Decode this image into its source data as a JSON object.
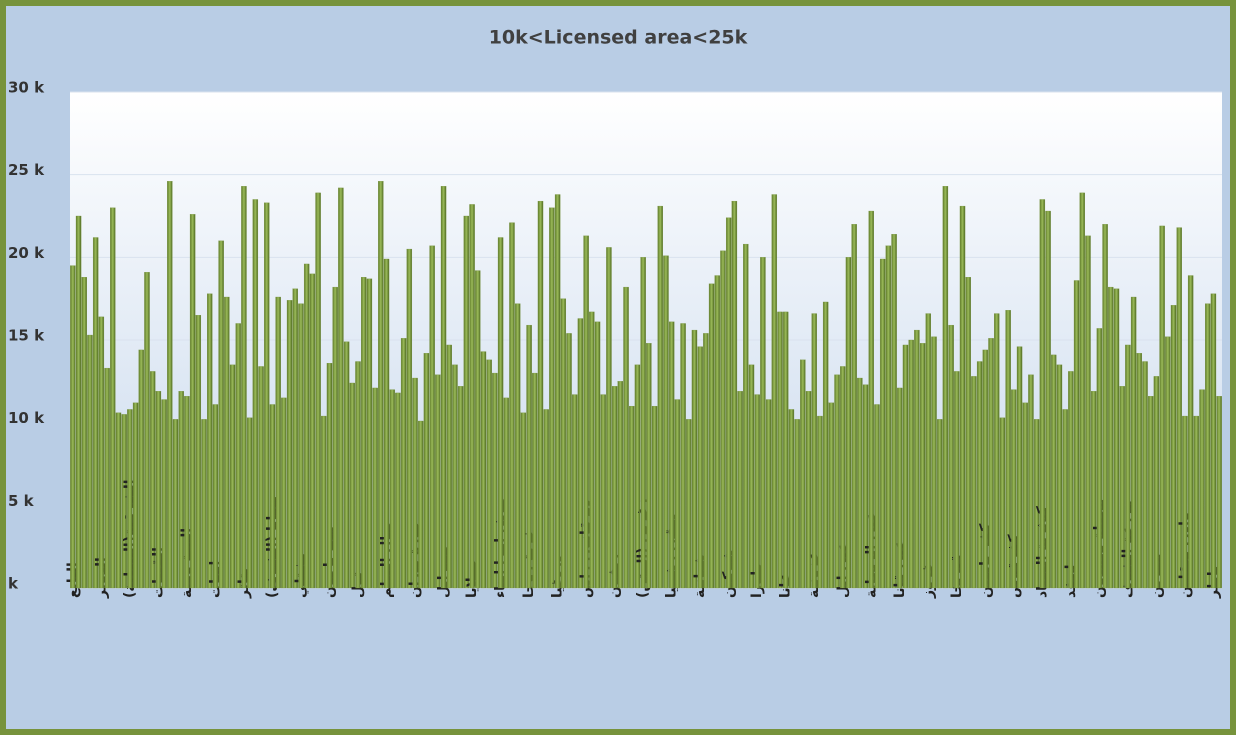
{
  "chart_data": {
    "type": "bar",
    "title": "10k<Licensed  area<25k",
    "categories": [
      "البابع",
      null,
      null,
      null,
      null,
      "الدوير",
      null,
      null,
      null,
      null,
      "الشرقية(النبطية)",
      null,
      null,
      null,
      null,
      "القبيات",
      null,
      null,
      null,
      null,
      "المية ومية",
      null,
      null,
      null,
      null,
      "ايعات",
      null,
      null,
      null,
      null,
      "بتاتر",
      null,
      null,
      null,
      null,
      "بسابا (الشوف)",
      null,
      null,
      null,
      null,
      "بشتلي",
      null,
      null,
      null,
      null,
      "بيت ياحون",
      null,
      null,
      null,
      null,
      "تول",
      null,
      null,
      null,
      null,
      "جبال البطم",
      null,
      null,
      null,
      null,
      "جورة بدران",
      null,
      null,
      null,
      null,
      "حصرايل",
      null,
      null,
      null,
      null,
      "حملايا",
      null,
      null,
      null,
      null,
      "حوش امرا ابناء",
      null,
      null,
      null,
      null,
      "خربة روحا",
      null,
      null,
      null,
      null,
      "دردغيا",
      null,
      null,
      null,
      null,
      "ديرقانون راس",
      null,
      null,
      null,
      null,
      "ريفون",
      null,
      null,
      null,
      null,
      "زغرين (المتن)",
      null,
      null,
      null,
      null,
      "سقي رشميا",
      null,
      null,
      null,
      null,
      "شبانية",
      null,
      null,
      null,
      null,
      "شوكين",
      null,
      null,
      null,
      null,
      "طورا",
      null,
      null,
      null,
      null,
      "عانا",
      null,
      null,
      null,
      null,
      "عزونية",
      null,
      null,
      null,
      null,
      "عين ابل",
      null,
      null,
      null,
      null,
      "عين الريحانة",
      null,
      null,
      null,
      null,
      "عين قانا",
      null,
      null,
      null,
      null,
      "غزوز",
      null,
      null,
      null,
      null,
      "قبريخا",
      null,
      null,
      null,
      null,
      "كفر ياسين",
      null,
      null,
      null,
      null,
      "كفرقوص",
      null,
      null,
      null,
      null,
      "كوثرية السياد",
      null,
      null,
      null,
      null,
      "لحفد",
      null,
      null,
      null,
      null,
      "محطة بحمدون",
      null,
      null,
      null,
      null,
      "مزرعة الشوف",
      null,
      null,
      null,
      null,
      "مهرين",
      null,
      null,
      null,
      null,
      "وادي بعقلين",
      null,
      null,
      null,
      null,
      "ياطر",
      null
    ],
    "values": [
      19.5,
      22.5,
      18.8,
      15.3,
      21.2,
      16.4,
      13.3,
      23.0,
      10.6,
      10.5,
      10.8,
      11.2,
      14.4,
      19.1,
      13.1,
      11.9,
      11.4,
      24.6,
      10.2,
      11.9,
      11.6,
      22.6,
      16.5,
      10.2,
      17.8,
      11.1,
      21.0,
      17.6,
      13.5,
      16.0,
      24.3,
      10.3,
      23.5,
      13.4,
      23.3,
      11.1,
      17.6,
      11.5,
      17.4,
      18.1,
      17.2,
      19.6,
      19.0,
      23.9,
      10.4,
      13.6,
      18.2,
      24.2,
      14.9,
      12.4,
      13.7,
      18.8,
      18.7,
      12.1,
      24.6,
      19.9,
      12.0,
      11.8,
      15.1,
      20.5,
      12.7,
      10.1,
      14.2,
      20.7,
      12.9,
      24.3,
      14.7,
      13.5,
      12.2,
      22.5,
      23.2,
      19.2,
      14.3,
      13.8,
      13.0,
      21.2,
      11.5,
      22.1,
      17.2,
      10.6,
      15.9,
      13.0,
      23.4,
      10.8,
      23.0,
      23.8,
      17.5,
      15.4,
      11.7,
      16.3,
      21.3,
      16.7,
      16.1,
      11.7,
      20.6,
      12.2,
      12.5,
      18.2,
      11.0,
      13.5,
      20.0,
      14.8,
      11.0,
      23.1,
      20.1,
      16.1,
      11.4,
      16.0,
      10.2,
      15.6,
      14.6,
      15.4,
      18.4,
      18.9,
      20.4,
      22.4,
      23.4,
      11.9,
      20.8,
      13.5,
      11.7,
      20.0,
      11.4,
      23.8,
      16.7,
      16.7,
      10.8,
      10.2,
      13.8,
      11.9,
      16.6,
      10.4,
      17.3,
      11.2,
      12.9,
      13.4,
      20.0,
      22.0,
      12.7,
      12.3,
      22.8,
      11.1,
      19.9,
      20.7,
      21.4,
      12.1,
      14.7,
      15.0,
      15.6,
      14.8,
      16.6,
      15.2,
      10.2,
      24.3,
      15.9,
      13.1,
      23.1,
      18.8,
      12.8,
      13.7,
      14.4,
      15.1,
      16.6,
      10.3,
      16.8,
      12.0,
      14.6,
      11.2,
      12.9,
      10.2,
      23.5,
      22.8,
      14.1,
      13.5,
      10.8,
      13.1,
      18.6,
      23.9,
      21.3,
      11.9,
      15.7,
      22.0,
      18.2,
      18.1,
      12.2,
      14.7,
      17.6,
      14.2,
      13.7,
      11.6,
      12.8,
      21.9,
      15.2,
      17.1,
      21.8,
      10.4,
      18.9,
      10.4,
      12.0,
      17.2,
      17.8,
      11.6
    ],
    "color": "#76923c",
    "ylim": [
      0,
      30
    ],
    "yticks": [
      {
        "value": 0,
        "label": "k"
      },
      {
        "value": 5,
        "label": "5 k"
      },
      {
        "value": 10,
        "label": "10 k"
      },
      {
        "value": 15,
        "label": "15 k"
      },
      {
        "value": 20,
        "label": "20 k"
      },
      {
        "value": 25,
        "label": "25 k"
      },
      {
        "value": 30,
        "label": "30 k"
      }
    ],
    "grid": true
  }
}
